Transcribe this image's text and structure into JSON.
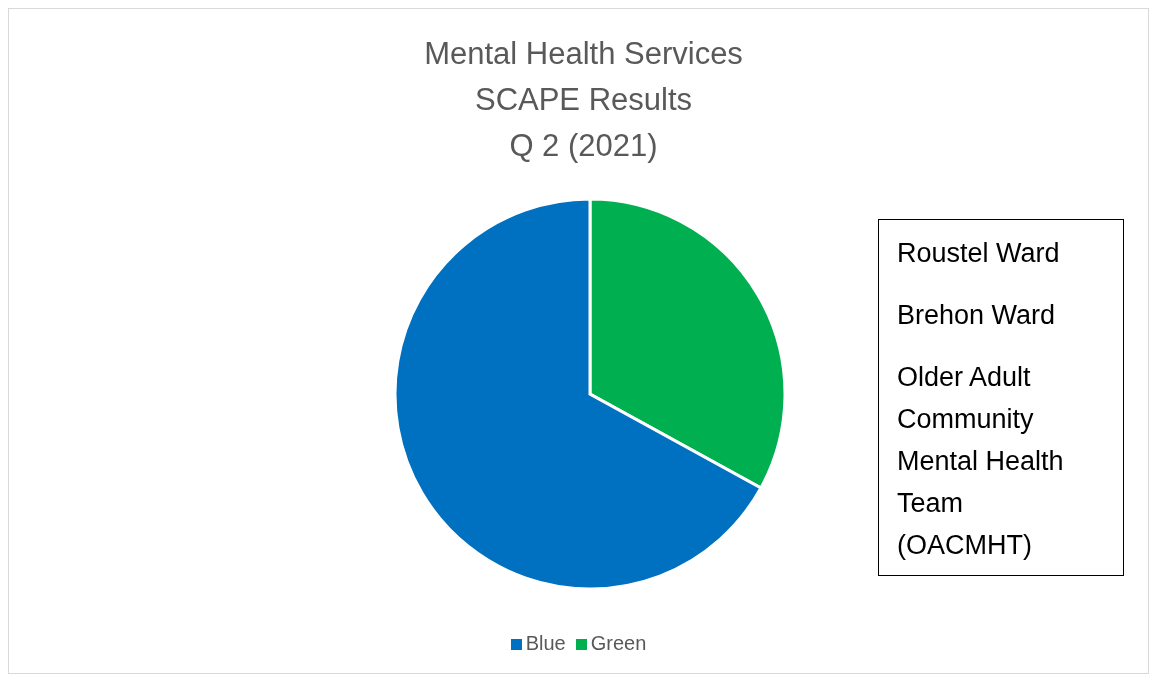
{
  "chart_data": {
    "type": "pie",
    "title": "Mental Health Services\nSCAPE Results\nQ 2 (2021)",
    "categories": [
      "Green",
      "Blue"
    ],
    "values": [
      33,
      67
    ],
    "colors": [
      "#00b050",
      "#0070c0"
    ],
    "legend": "bottom",
    "annotations": [
      "Roustel Ward",
      "Brehon Ward",
      "Older Adult Community Mental Health Team (OACMHT)"
    ]
  }
}
